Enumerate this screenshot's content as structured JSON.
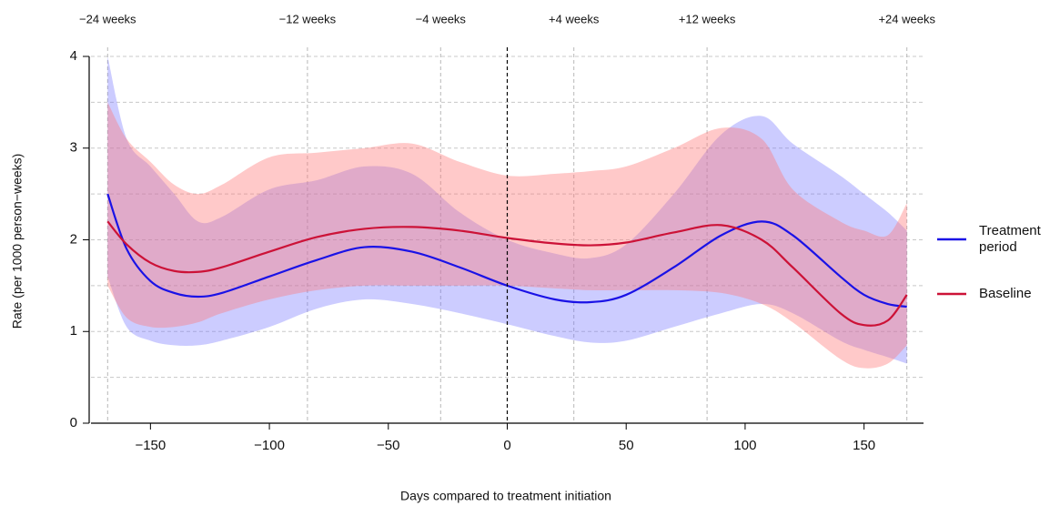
{
  "chart_data": {
    "type": "line",
    "x_label": "Days compared to treatment initiation",
    "y_label": "Rate (per 1000 person−weeks)",
    "x": [
      -168,
      -160,
      -150,
      -140,
      -130,
      -120,
      -100,
      -80,
      -60,
      -40,
      -20,
      0,
      20,
      35,
      50,
      70,
      90,
      107,
      120,
      140,
      150,
      160,
      168
    ],
    "series": [
      {
        "name": "Treatment period",
        "color": "#1a12e6",
        "band_color": "rgba(110,110,255,0.35)",
        "values": [
          2.5,
          1.9,
          1.55,
          1.42,
          1.38,
          1.42,
          1.6,
          1.78,
          1.92,
          1.87,
          1.7,
          1.5,
          1.35,
          1.32,
          1.4,
          1.7,
          2.05,
          2.2,
          2.05,
          1.6,
          1.4,
          1.3,
          1.27
        ],
        "lower": [
          1.6,
          1.05,
          0.9,
          0.85,
          0.85,
          0.9,
          1.05,
          1.25,
          1.35,
          1.3,
          1.2,
          1.08,
          0.95,
          0.88,
          0.9,
          1.05,
          1.2,
          1.3,
          1.2,
          0.9,
          0.8,
          0.72,
          0.65
        ],
        "upper": [
          4.0,
          3.1,
          2.8,
          2.5,
          2.2,
          2.25,
          2.55,
          2.65,
          2.8,
          2.72,
          2.3,
          2.0,
          1.85,
          1.8,
          1.95,
          2.5,
          3.15,
          3.35,
          3.05,
          2.7,
          2.5,
          2.3,
          2.1
        ]
      },
      {
        "name": "Baseline",
        "color": "#cc1237",
        "band_color": "rgba(255,120,120,0.4)",
        "values": [
          2.2,
          1.95,
          1.75,
          1.66,
          1.65,
          1.7,
          1.87,
          2.03,
          2.12,
          2.14,
          2.1,
          2.02,
          1.96,
          1.94,
          1.97,
          2.08,
          2.16,
          2.0,
          1.7,
          1.2,
          1.07,
          1.12,
          1.4
        ],
        "lower": [
          1.5,
          1.15,
          1.05,
          1.05,
          1.1,
          1.2,
          1.35,
          1.45,
          1.5,
          1.5,
          1.5,
          1.5,
          1.47,
          1.45,
          1.45,
          1.45,
          1.42,
          1.3,
          1.1,
          0.7,
          0.6,
          0.65,
          0.85
        ],
        "upper": [
          3.5,
          3.1,
          2.85,
          2.6,
          2.5,
          2.6,
          2.9,
          2.95,
          3.0,
          3.05,
          2.85,
          2.7,
          2.72,
          2.75,
          2.8,
          3.0,
          3.22,
          3.1,
          2.55,
          2.2,
          2.1,
          2.05,
          2.4
        ]
      }
    ],
    "xlim": [
      -175,
      175
    ],
    "ylim": [
      0,
      4
    ],
    "xticks": [
      {
        "value": -150,
        "label": "−150"
      },
      {
        "value": -100,
        "label": "−100"
      },
      {
        "value": -50,
        "label": "−50"
      },
      0,
      50,
      100,
      150
    ],
    "yticks": [
      0,
      1,
      2,
      3,
      4
    ],
    "top_ticks": [
      {
        "value": -168,
        "label": "−24 weeks"
      },
      {
        "value": -84,
        "label": "−12 weeks"
      },
      {
        "value": -28,
        "label": "−4 weeks"
      },
      {
        "value": 28,
        "label": "+4 weeks"
      },
      {
        "value": 84,
        "label": "+12 weeks"
      },
      {
        "value": 168,
        "label": "+24 weeks"
      }
    ],
    "ygrid": [
      0.5,
      1,
      1.5,
      2,
      2.5,
      3,
      3.5,
      4
    ],
    "ref_x": 0,
    "legend": "right"
  }
}
